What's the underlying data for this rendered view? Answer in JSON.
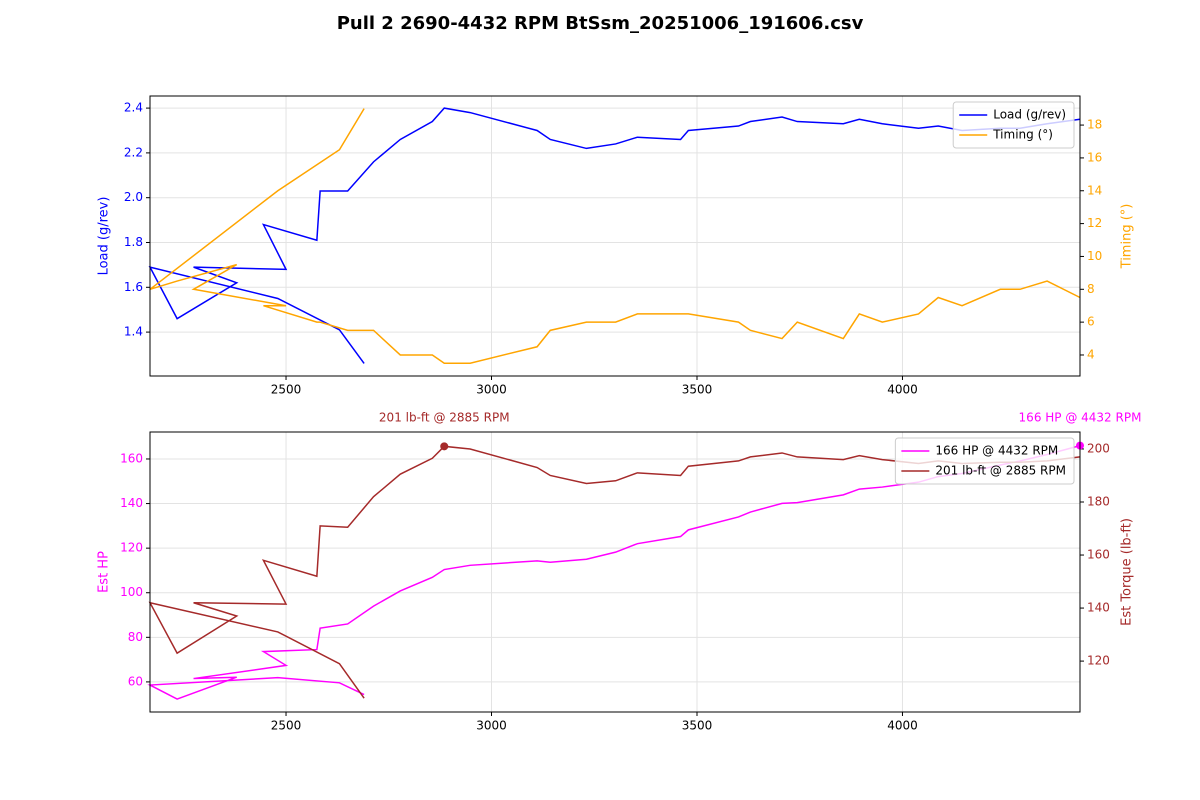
{
  "title": "Pull 2 2690-4432 RPM BtSsm_20251006_191606.csv",
  "chart_data": [
    {
      "type": "line",
      "x": [
        2690,
        2630,
        2480,
        2169,
        2235,
        2380,
        2275,
        2500,
        2445,
        2575,
        2583,
        2650,
        2713,
        2778,
        2856,
        2885,
        2948,
        3111,
        3143,
        3231,
        3302,
        3355,
        3460,
        3479,
        3601,
        3630,
        3707,
        3744,
        3856,
        3895,
        3951,
        4039,
        4087,
        4145,
        4238,
        4286,
        4352,
        4432
      ],
      "xlim": [
        2169,
        4432
      ],
      "xticks": [
        2500,
        3000,
        3500,
        4000
      ],
      "ylabel": "Load (g/rev)",
      "y2label": "Timing (°)",
      "ylim": [
        1.204,
        2.454
      ],
      "yticks": [
        1.4,
        1.6,
        1.8,
        {
          "value": 2,
          "label": "2.0"
        },
        2.2,
        2.4
      ],
      "y2lim": [
        2.72,
        19.77
      ],
      "y2ticks": [
        4,
        6,
        8,
        10,
        12,
        14,
        16,
        18
      ],
      "grid": true,
      "legend": "upper right",
      "series": [
        {
          "name": "Load (g/rev)",
          "color": "#0000ff",
          "axis": "y",
          "values": [
            1.26,
            1.41,
            1.55,
            1.69,
            1.46,
            1.62,
            1.69,
            1.68,
            1.88,
            1.81,
            2.03,
            2.03,
            2.16,
            2.26,
            2.34,
            2.4,
            2.38,
            2.3,
            2.26,
            2.22,
            2.24,
            2.27,
            2.26,
            2.3,
            2.32,
            2.34,
            2.36,
            2.34,
            2.33,
            2.35,
            2.33,
            2.31,
            2.32,
            2.3,
            2.31,
            2.31,
            2.33,
            2.35
          ]
        },
        {
          "name": "Timing (°)",
          "color": "#ffa500",
          "axis": "y2",
          "values": [
            19,
            16.5,
            14,
            8,
            8.5,
            9.5,
            8,
            7,
            7,
            6,
            6,
            5.5,
            5.5,
            4,
            4,
            3.5,
            3.5,
            4.5,
            5.5,
            6,
            6,
            6.5,
            6.5,
            6.5,
            6,
            5.5,
            5,
            6,
            5,
            6.5,
            6,
            6.5,
            7.5,
            7,
            8,
            8,
            8.5,
            7.5
          ]
        }
      ]
    },
    {
      "type": "line",
      "x": [
        2690,
        2630,
        2480,
        2169,
        2235,
        2380,
        2275,
        2500,
        2445,
        2575,
        2583,
        2650,
        2713,
        2778,
        2856,
        2885,
        2948,
        3111,
        3143,
        3231,
        3302,
        3355,
        3460,
        3479,
        3601,
        3630,
        3707,
        3744,
        3856,
        3895,
        3951,
        4039,
        4087,
        4145,
        4238,
        4286,
        4352,
        4432
      ],
      "xlim": [
        2169,
        4432
      ],
      "xticks": [
        2500,
        3000,
        3500,
        4000
      ],
      "ylabel": "Est HP",
      "y2label": "Est Torque (lb-ft)",
      "ylim": [
        46.5,
        172.1
      ],
      "yticks": [
        60,
        80,
        100,
        120,
        140,
        160
      ],
      "y2lim": [
        100.8,
        206.4
      ],
      "y2ticks": [
        120,
        140,
        160,
        180,
        200
      ],
      "grid": true,
      "legend": "upper right",
      "series": [
        {
          "name": "166 HP @ 4432 RPM",
          "color": "#ff00ff",
          "axis": "y",
          "values": [
            54.3,
            59.6,
            61.9,
            58.6,
            52.3,
            62.1,
            61.5,
            67.4,
            73.6,
            74.5,
            84.1,
            86.0,
            94.0,
            100.8,
            106.9,
            110.4,
            112.3,
            114.3,
            113.7,
            115.0,
            118.2,
            122.0,
            125.2,
            128.2,
            134.0,
            136.2,
            140.1,
            140.4,
            143.9,
            146.5,
            147.4,
            149.6,
            152.1,
            153.5,
            157.3,
            159.1,
            162.0,
            166
          ]
        },
        {
          "name": "201 lb-ft @ 2885 RPM",
          "color": "#a52a2a",
          "axis": "y2",
          "values": [
            106,
            119,
            131,
            142,
            123,
            137,
            142,
            141.5,
            158,
            152,
            171,
            170.5,
            182,
            190.5,
            196.5,
            201,
            200,
            193,
            190,
            187,
            188,
            191,
            190,
            193.5,
            195.5,
            197,
            198.5,
            197,
            196,
            197.5,
            196,
            194.5,
            195.5,
            194.5,
            195,
            195,
            195.5,
            197
          ]
        }
      ],
      "annotations": [
        {
          "text": "201 lb-ft @ 2885 RPM",
          "x": 2885,
          "y": 201,
          "axis": "y2",
          "color": "#a52a2a"
        },
        {
          "text": "166 HP @ 4432 RPM",
          "x": 4432,
          "y": 166,
          "axis": "y",
          "color": "#ff00ff"
        }
      ]
    }
  ]
}
